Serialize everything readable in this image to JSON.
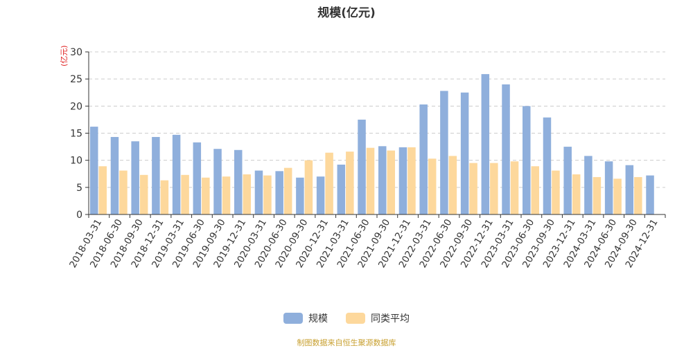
{
  "chart_data": {
    "type": "bar",
    "title": "规模(亿元)",
    "ylabel": "(亿元)",
    "ylim": [
      0,
      30
    ],
    "yticks": [
      0,
      5,
      10,
      15,
      20,
      25,
      30
    ],
    "grid": true,
    "legend_position": "bottom-center",
    "categories": [
      "2018-03-31",
      "2018-06-30",
      "2018-09-30",
      "2018-12-31",
      "2019-03-31",
      "2019-06-30",
      "2019-09-30",
      "2019-12-31",
      "2020-03-31",
      "2020-06-30",
      "2020-09-30",
      "2020-12-31",
      "2021-03-31",
      "2021-06-30",
      "2021-09-30",
      "2021-12-31",
      "2022-03-31",
      "2022-06-30",
      "2022-09-30",
      "2022-12-31",
      "2023-03-31",
      "2023-06-30",
      "2023-09-30",
      "2023-12-31",
      "2024-03-31",
      "2024-06-30",
      "2024-09-30",
      "2024-12-31"
    ],
    "series": [
      {
        "name": "规模",
        "color": "#8fafdc",
        "values": [
          16.2,
          14.3,
          13.5,
          14.3,
          14.7,
          13.3,
          12.1,
          11.9,
          8.1,
          8.0,
          6.8,
          7.0,
          9.2,
          17.5,
          12.6,
          12.4,
          20.3,
          22.8,
          22.5,
          25.9,
          24.0,
          20.0,
          17.9,
          12.5,
          10.8,
          9.8,
          9.1,
          7.2
        ]
      },
      {
        "name": "同类平均",
        "color": "#fdd89c",
        "values": [
          8.9,
          8.1,
          7.3,
          6.3,
          7.3,
          6.8,
          7.0,
          7.4,
          7.2,
          8.6,
          10.0,
          11.4,
          11.6,
          12.3,
          11.8,
          12.4,
          10.3,
          10.8,
          9.5,
          9.5,
          9.8,
          8.9,
          8.1,
          7.4,
          6.9,
          6.6,
          6.9,
          null
        ]
      }
    ]
  },
  "source_note": "制图数据来自恒生聚源数据库"
}
